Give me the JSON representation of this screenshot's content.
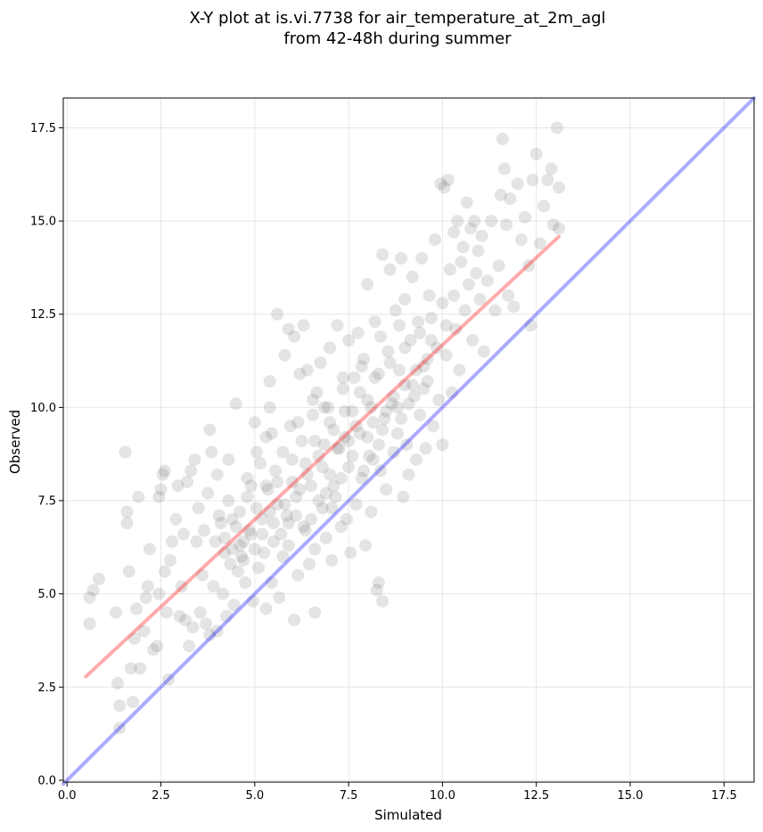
{
  "chart_data": {
    "type": "scatter",
    "title_line1": "X-Y plot at is.vi.7738 for air_temperature_at_2m_agl",
    "title_line2": "from 42-48h during summer",
    "xlabel": "Simulated",
    "ylabel": "Observed",
    "xlim": [
      -0.1,
      18.3
    ],
    "ylim": [
      -0.05,
      18.3
    ],
    "x_ticks": [
      "0.0",
      "2.5",
      "5.0",
      "7.5",
      "10.0",
      "12.5",
      "15.0",
      "17.5"
    ],
    "y_ticks": [
      "0.0",
      "2.5",
      "5.0",
      "7.5",
      "10.0",
      "12.5",
      "15.0",
      "17.5"
    ],
    "x_tick_values": [
      0,
      2.5,
      5,
      7.5,
      10,
      12.5,
      15,
      17.5
    ],
    "y_tick_values": [
      0,
      2.5,
      5,
      7.5,
      10,
      12.5,
      15,
      17.5
    ],
    "grid": true,
    "point_color": "#555555",
    "point_opacity": 0.16,
    "identity_line": {
      "color": "#0000ff",
      "opacity": 0.33,
      "x": [
        -0.1,
        18.3
      ],
      "y": [
        -0.1,
        18.3
      ]
    },
    "fit_line": {
      "color": "#ff0000",
      "opacity": 0.33,
      "x": [
        0.5,
        13.1
      ],
      "y": [
        2.78,
        14.58
      ]
    },
    "points": [
      [
        0.6,
        4.9
      ],
      [
        0.7,
        5.1
      ],
      [
        0.85,
        5.4
      ],
      [
        0.6,
        4.2
      ],
      [
        1.3,
        4.5
      ],
      [
        1.35,
        2.6
      ],
      [
        1.4,
        2.0
      ],
      [
        1.4,
        1.4
      ],
      [
        1.55,
        8.8
      ],
      [
        1.6,
        7.2
      ],
      [
        1.6,
        6.9
      ],
      [
        1.65,
        5.6
      ],
      [
        1.7,
        3.0
      ],
      [
        1.75,
        2.1
      ],
      [
        1.8,
        3.8
      ],
      [
        1.85,
        4.6
      ],
      [
        1.9,
        7.6
      ],
      [
        1.95,
        3.0
      ],
      [
        2.05,
        4.0
      ],
      [
        2.1,
        4.9
      ],
      [
        2.15,
        5.2
      ],
      [
        2.2,
        6.2
      ],
      [
        2.3,
        3.5
      ],
      [
        2.4,
        3.6
      ],
      [
        2.45,
        5.0
      ],
      [
        2.45,
        7.6
      ],
      [
        2.5,
        7.8
      ],
      [
        2.55,
        8.2
      ],
      [
        2.6,
        8.3
      ],
      [
        2.6,
        5.6
      ],
      [
        2.65,
        4.5
      ],
      [
        2.7,
        2.7
      ],
      [
        2.75,
        5.9
      ],
      [
        2.8,
        6.4
      ],
      [
        2.9,
        7.0
      ],
      [
        2.95,
        7.9
      ],
      [
        3.0,
        4.4
      ],
      [
        3.05,
        5.2
      ],
      [
        3.1,
        6.6
      ],
      [
        3.15,
        4.3
      ],
      [
        3.2,
        8.0
      ],
      [
        3.25,
        3.6
      ],
      [
        3.3,
        8.3
      ],
      [
        3.35,
        4.1
      ],
      [
        3.4,
        8.6
      ],
      [
        3.45,
        6.4
      ],
      [
        3.5,
        7.3
      ],
      [
        3.55,
        4.5
      ],
      [
        3.6,
        5.5
      ],
      [
        3.65,
        6.7
      ],
      [
        3.7,
        4.2
      ],
      [
        3.75,
        7.7
      ],
      [
        3.8,
        9.4
      ],
      [
        3.8,
        3.9
      ],
      [
        3.85,
        8.8
      ],
      [
        3.9,
        5.2
      ],
      [
        3.95,
        6.4
      ],
      [
        4.0,
        8.2
      ],
      [
        4.0,
        4.0
      ],
      [
        4.05,
        7.1
      ],
      [
        4.1,
        6.9
      ],
      [
        4.15,
        5.0
      ],
      [
        4.2,
        6.1
      ],
      [
        4.25,
        4.4
      ],
      [
        4.3,
        7.5
      ],
      [
        4.3,
        8.6
      ],
      [
        4.35,
        5.8
      ],
      [
        4.4,
        6.2
      ],
      [
        4.45,
        4.7
      ],
      [
        4.5,
        6.8
      ],
      [
        4.5,
        10.1
      ],
      [
        4.55,
        5.6
      ],
      [
        4.6,
        7.2
      ],
      [
        4.65,
        6.0
      ],
      [
        4.7,
        6.4
      ],
      [
        4.75,
        5.3
      ],
      [
        4.8,
        8.1
      ],
      [
        4.85,
        6.7
      ],
      [
        4.9,
        7.9
      ],
      [
        4.95,
        4.8
      ],
      [
        5.0,
        6.2
      ],
      [
        5.0,
        9.6
      ],
      [
        5.05,
        7.3
      ],
      [
        5.1,
        5.7
      ],
      [
        5.15,
        8.5
      ],
      [
        5.2,
        7.0
      ],
      [
        5.25,
        6.1
      ],
      [
        5.3,
        4.6
      ],
      [
        5.3,
        9.2
      ],
      [
        5.35,
        7.8
      ],
      [
        5.4,
        10.7
      ],
      [
        5.4,
        10.0
      ],
      [
        5.45,
        5.3
      ],
      [
        5.5,
        6.9
      ],
      [
        5.55,
        8.3
      ],
      [
        5.6,
        12.5
      ],
      [
        5.6,
        7.4
      ],
      [
        5.65,
        4.9
      ],
      [
        5.7,
        6.6
      ],
      [
        5.75,
        8.8
      ],
      [
        5.8,
        11.4
      ],
      [
        5.85,
        7.1
      ],
      [
        5.9,
        12.1
      ],
      [
        5.9,
        6.3
      ],
      [
        5.95,
        9.5
      ],
      [
        6.0,
        8.0
      ],
      [
        6.05,
        11.9
      ],
      [
        6.05,
        4.3
      ],
      [
        6.1,
        7.6
      ],
      [
        6.15,
        5.5
      ],
      [
        6.2,
        10.9
      ],
      [
        6.25,
        9.1
      ],
      [
        6.3,
        12.2
      ],
      [
        6.3,
        6.8
      ],
      [
        6.35,
        8.5
      ],
      [
        6.4,
        11.0
      ],
      [
        6.45,
        5.8
      ],
      [
        6.5,
        7.9
      ],
      [
        6.55,
        9.8
      ],
      [
        6.6,
        4.5
      ],
      [
        6.6,
        6.2
      ],
      [
        6.65,
        10.4
      ],
      [
        6.7,
        8.7
      ],
      [
        6.75,
        11.2
      ],
      [
        6.8,
        7.3
      ],
      [
        6.85,
        9.0
      ],
      [
        6.9,
        6.5
      ],
      [
        6.95,
        10.0
      ],
      [
        7.0,
        8.2
      ],
      [
        7.0,
        11.6
      ],
      [
        7.05,
        5.9
      ],
      [
        7.1,
        9.4
      ],
      [
        7.15,
        7.6
      ],
      [
        7.2,
        12.2
      ],
      [
        7.25,
        8.9
      ],
      [
        7.3,
        6.8
      ],
      [
        7.35,
        10.5
      ],
      [
        7.4,
        9.2
      ],
      [
        7.45,
        7.0
      ],
      [
        7.5,
        11.8
      ],
      [
        7.5,
        8.4
      ],
      [
        7.55,
        6.1
      ],
      [
        7.6,
        9.9
      ],
      [
        7.65,
        10.8
      ],
      [
        7.7,
        7.4
      ],
      [
        7.75,
        12.0
      ],
      [
        7.8,
        9.3
      ],
      [
        7.85,
        8.1
      ],
      [
        7.9,
        11.3
      ],
      [
        7.95,
        6.3
      ],
      [
        8.0,
        10.2
      ],
      [
        8.0,
        13.3
      ],
      [
        8.05,
        8.7
      ],
      [
        8.1,
        7.2
      ],
      [
        8.15,
        9.6
      ],
      [
        8.2,
        12.3
      ],
      [
        8.25,
        5.1
      ],
      [
        8.3,
        5.3
      ],
      [
        8.3,
        10.9
      ],
      [
        8.35,
        8.3
      ],
      [
        8.4,
        4.8
      ],
      [
        8.4,
        14.1
      ],
      [
        8.45,
        9.7
      ],
      [
        8.5,
        7.8
      ],
      [
        8.55,
        11.5
      ],
      [
        8.6,
        13.7
      ],
      [
        8.65,
        10.1
      ],
      [
        8.7,
        8.8
      ],
      [
        8.75,
        12.6
      ],
      [
        8.8,
        9.3
      ],
      [
        8.85,
        11.0
      ],
      [
        8.9,
        14.0
      ],
      [
        8.95,
        7.6
      ],
      [
        9.0,
        10.6
      ],
      [
        9.0,
        12.9
      ],
      [
        9.05,
        9.0
      ],
      [
        9.1,
        8.2
      ],
      [
        9.15,
        11.8
      ],
      [
        9.2,
        13.5
      ],
      [
        9.25,
        10.3
      ],
      [
        9.3,
        8.6
      ],
      [
        9.35,
        12.3
      ],
      [
        9.4,
        9.8
      ],
      [
        9.45,
        14.0
      ],
      [
        9.5,
        11.1
      ],
      [
        9.55,
        8.9
      ],
      [
        9.6,
        10.7
      ],
      [
        9.65,
        13.0
      ],
      [
        9.7,
        12.4
      ],
      [
        9.75,
        9.5
      ],
      [
        9.8,
        14.5
      ],
      [
        9.85,
        11.6
      ],
      [
        9.9,
        10.2
      ],
      [
        9.95,
        16.0
      ],
      [
        10.0,
        12.8
      ],
      [
        10.0,
        9.0
      ],
      [
        10.05,
        15.9
      ],
      [
        10.1,
        11.4
      ],
      [
        10.15,
        16.1
      ],
      [
        10.2,
        13.7
      ],
      [
        10.25,
        10.4
      ],
      [
        10.3,
        14.7
      ],
      [
        10.35,
        12.1
      ],
      [
        10.4,
        15.0
      ],
      [
        10.45,
        11.0
      ],
      [
        10.5,
        13.9
      ],
      [
        10.55,
        14.3
      ],
      [
        10.6,
        12.6
      ],
      [
        10.65,
        15.5
      ],
      [
        10.7,
        13.3
      ],
      [
        10.75,
        14.8
      ],
      [
        10.8,
        11.8
      ],
      [
        10.85,
        15.0
      ],
      [
        10.9,
        13.6
      ],
      [
        10.95,
        14.2
      ],
      [
        11.0,
        12.9
      ],
      [
        11.05,
        14.6
      ],
      [
        11.1,
        11.5
      ],
      [
        11.2,
        13.4
      ],
      [
        11.3,
        15.0
      ],
      [
        11.4,
        12.6
      ],
      [
        11.5,
        13.8
      ],
      [
        11.55,
        15.7
      ],
      [
        11.6,
        17.2
      ],
      [
        11.65,
        16.4
      ],
      [
        11.7,
        14.9
      ],
      [
        11.75,
        13.0
      ],
      [
        11.8,
        15.6
      ],
      [
        11.9,
        12.7
      ],
      [
        12.0,
        16.0
      ],
      [
        12.1,
        14.5
      ],
      [
        12.2,
        15.1
      ],
      [
        12.3,
        13.8
      ],
      [
        12.35,
        12.2
      ],
      [
        12.4,
        16.1
      ],
      [
        12.5,
        16.8
      ],
      [
        12.6,
        14.4
      ],
      [
        12.7,
        15.4
      ],
      [
        12.8,
        16.1
      ],
      [
        12.9,
        16.4
      ],
      [
        12.95,
        14.9
      ],
      [
        13.05,
        17.5
      ],
      [
        13.1,
        15.9
      ],
      [
        13.1,
        14.8
      ],
      [
        4.2,
        6.5
      ],
      [
        4.4,
        7.0
      ],
      [
        4.6,
        6.3
      ],
      [
        4.8,
        7.6
      ],
      [
        5.2,
        6.6
      ],
      [
        5.4,
        7.2
      ],
      [
        5.6,
        8.0
      ],
      [
        5.8,
        7.4
      ],
      [
        6.0,
        8.6
      ],
      [
        6.2,
        7.8
      ],
      [
        6.4,
        8.2
      ],
      [
        6.6,
        9.1
      ],
      [
        6.8,
        8.4
      ],
      [
        7.0,
        9.6
      ],
      [
        7.2,
        8.9
      ],
      [
        7.4,
        9.9
      ],
      [
        7.6,
        8.7
      ],
      [
        7.8,
        10.4
      ],
      [
        8.0,
        9.2
      ],
      [
        8.2,
        10.8
      ],
      [
        8.4,
        9.4
      ],
      [
        8.6,
        11.2
      ],
      [
        8.8,
        10.0
      ],
      [
        9.0,
        11.6
      ],
      [
        9.2,
        10.6
      ],
      [
        9.4,
        12.0
      ],
      [
        9.6,
        11.3
      ],
      [
        7.1,
        7.9
      ],
      [
        7.3,
        8.1
      ],
      [
        6.9,
        7.7
      ],
      [
        7.5,
        9.1
      ],
      [
        7.7,
        9.5
      ],
      [
        8.1,
        10.0
      ],
      [
        8.3,
        9.0
      ],
      [
        6.5,
        7.0
      ],
      [
        6.7,
        7.5
      ],
      [
        5.9,
        6.9
      ],
      [
        6.1,
        7.1
      ],
      [
        8.5,
        9.9
      ],
      [
        8.7,
        10.3
      ],
      [
        8.9,
        9.7
      ],
      [
        9.1,
        10.1
      ],
      [
        5.3,
        7.9
      ],
      [
        5.5,
        6.4
      ],
      [
        4.7,
        5.9
      ],
      [
        4.9,
        6.6
      ],
      [
        9.3,
        11.0
      ],
      [
        9.5,
        10.5
      ],
      [
        9.7,
        11.8
      ],
      [
        10.1,
        12.2
      ],
      [
        10.3,
        13.0
      ],
      [
        7.9,
        8.3
      ],
      [
        8.15,
        8.6
      ],
      [
        7.05,
        7.3
      ],
      [
        6.35,
        6.7
      ],
      [
        5.75,
        6.0
      ],
      [
        6.85,
        10.0
      ],
      [
        7.35,
        10.8
      ],
      [
        7.85,
        11.1
      ],
      [
        8.35,
        11.9
      ],
      [
        8.85,
        12.2
      ],
      [
        5.05,
        8.8
      ],
      [
        5.45,
        9.3
      ],
      [
        6.15,
        9.6
      ],
      [
        6.55,
        10.2
      ]
    ]
  }
}
